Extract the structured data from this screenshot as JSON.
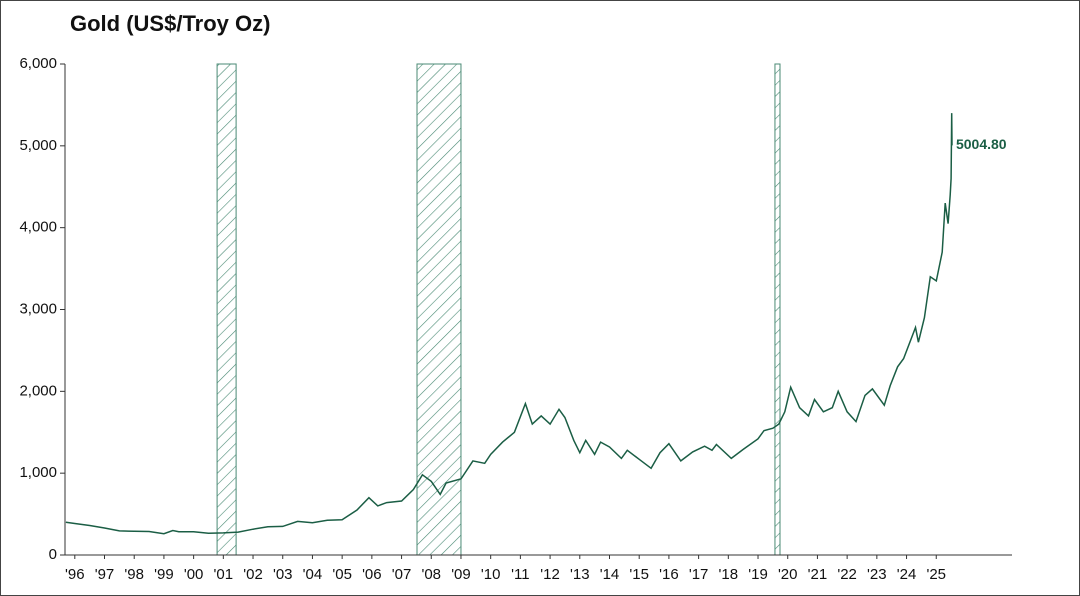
{
  "chart_data": {
    "type": "line",
    "title": "Gold (US$/Troy Oz)",
    "xlim": [
      1996.17,
      2028.05
    ],
    "ylim": [
      0,
      6000
    ],
    "yticks": [
      0,
      {
        "value": 1000,
        "label": "1,000"
      },
      {
        "value": 2000,
        "label": "2,000"
      },
      {
        "value": 3000,
        "label": "3,000"
      },
      {
        "value": 4000,
        "label": "4,000"
      },
      {
        "value": 5000,
        "label": "5,000"
      },
      {
        "value": 6000,
        "label": "6,000"
      }
    ],
    "xticks": [
      {
        "value": 1996.5,
        "label": "'96"
      },
      {
        "value": 1997.5,
        "label": "'97"
      },
      {
        "value": 1998.5,
        "label": "'98"
      },
      {
        "value": 1999.5,
        "label": "'99"
      },
      {
        "value": 2000.5,
        "label": "'00"
      },
      {
        "value": 2001.5,
        "label": "'01"
      },
      {
        "value": 2002.5,
        "label": "'02"
      },
      {
        "value": 2003.5,
        "label": "'03"
      },
      {
        "value": 2004.5,
        "label": "'04"
      },
      {
        "value": 2005.5,
        "label": "'05"
      },
      {
        "value": 2006.5,
        "label": "'06"
      },
      {
        "value": 2007.5,
        "label": "'07"
      },
      {
        "value": 2008.5,
        "label": "'08"
      },
      {
        "value": 2009.5,
        "label": "'09"
      },
      {
        "value": 2010.5,
        "label": "'10"
      },
      {
        "value": 2011.5,
        "label": "'11"
      },
      {
        "value": 2012.5,
        "label": "'12"
      },
      {
        "value": 2013.5,
        "label": "'13"
      },
      {
        "value": 2014.5,
        "label": "'14"
      },
      {
        "value": 2015.5,
        "label": "'15"
      },
      {
        "value": 2016.5,
        "label": "'16"
      },
      {
        "value": 2017.5,
        "label": "'17"
      },
      {
        "value": 2018.5,
        "label": "'18"
      },
      {
        "value": 2019.5,
        "label": "'19"
      },
      {
        "value": 2020.5,
        "label": "'20"
      },
      {
        "value": 2021.5,
        "label": "'21"
      },
      {
        "value": 2022.5,
        "label": "'22"
      },
      {
        "value": 2023.5,
        "label": "'23"
      },
      {
        "value": 2024.5,
        "label": "'24"
      },
      {
        "value": 2025.5,
        "label": "'25"
      }
    ],
    "recessions": [
      [
        2001.29,
        2001.93
      ],
      [
        2008.02,
        2009.5
      ],
      [
        2020.07,
        2020.24
      ]
    ],
    "color": "#1b5e45",
    "series": [
      {
        "color": "#1b5e45",
        "x": [
          1996.2,
          1996.5,
          1997,
          1997.5,
          1998,
          1998.5,
          1999,
          1999.5,
          1999.8,
          2000,
          2000.5,
          2001,
          2001.5,
          2002,
          2002.5,
          2003,
          2003.5,
          2004,
          2004.5,
          2005,
          2005.5,
          2006,
          2006.4,
          2006.7,
          2007,
          2007.5,
          2007.9,
          2008.2,
          2008.5,
          2008.8,
          2009,
          2009.5,
          2009.9,
          2010.3,
          2010.5,
          2010.9,
          2011.3,
          2011.67,
          2011.9,
          2012.2,
          2012.5,
          2012.8,
          2013,
          2013.3,
          2013.5,
          2013.7,
          2014,
          2014.2,
          2014.5,
          2014.9,
          2015.1,
          2015.5,
          2015.9,
          2016.2,
          2016.5,
          2016.9,
          2017.3,
          2017.7,
          2017.95,
          2018.1,
          2018.6,
          2019,
          2019.5,
          2019.7,
          2020,
          2020.2,
          2020.4,
          2020.6,
          2020.9,
          2021.2,
          2021.4,
          2021.7,
          2022,
          2022.2,
          2022.5,
          2022.8,
          2023.1,
          2023.35,
          2023.75,
          2023.95,
          2024.2,
          2024.4,
          2024.8,
          2024.9,
          2025.1,
          2025.3,
          2025.5,
          2025.7,
          2025.8,
          2025.9,
          2025.97,
          2026.0,
          2026.02,
          2026.03
        ],
        "values": [
          400,
          385,
          360,
          330,
          295,
          290,
          287,
          260,
          300,
          285,
          285,
          265,
          270,
          280,
          315,
          345,
          350,
          410,
          395,
          425,
          430,
          550,
          700,
          600,
          640,
          660,
          800,
          980,
          900,
          740,
          880,
          930,
          1150,
          1120,
          1230,
          1380,
          1500,
          1850,
          1600,
          1700,
          1600,
          1780,
          1680,
          1400,
          1250,
          1400,
          1230,
          1380,
          1320,
          1180,
          1280,
          1170,
          1060,
          1250,
          1360,
          1150,
          1260,
          1330,
          1280,
          1350,
          1180,
          1290,
          1420,
          1520,
          1550,
          1600,
          1750,
          2050,
          1800,
          1700,
          1900,
          1750,
          1800,
          2000,
          1750,
          1630,
          1950,
          2030,
          1830,
          2070,
          2300,
          2400,
          2780,
          2600,
          2900,
          3400,
          3350,
          3700,
          4300,
          4050,
          4400,
          4600,
          5400,
          5004.8
        ]
      }
    ],
    "end_label": {
      "value": 5004.8,
      "label": "5004.80"
    }
  }
}
